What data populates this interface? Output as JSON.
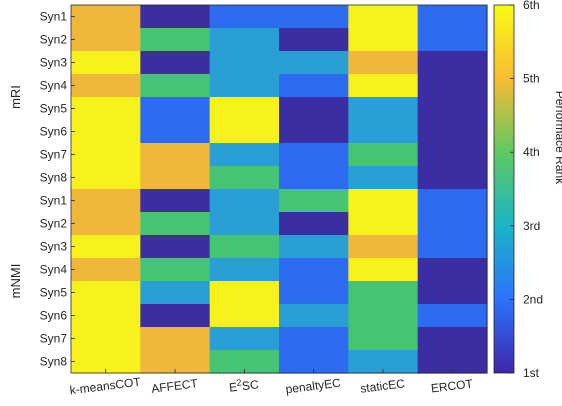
{
  "chart_data": {
    "type": "heatmap",
    "columns": [
      "k-meansCOT",
      "AFFECT",
      "E2SC",
      "penaltyEC",
      "staticEC",
      "ERCOT"
    ],
    "rows": [
      "Syn1",
      "Syn2",
      "Syn3",
      "Syn4",
      "Syn5",
      "Syn6",
      "Syn7",
      "Syn8",
      "Syn1",
      "Syn2",
      "Syn3",
      "Syn4",
      "Syn5",
      "Syn6",
      "Syn7",
      "Syn8"
    ],
    "row_groups": [
      {
        "label": "mRI",
        "start": 0,
        "count": 8
      },
      {
        "label": "mNMI",
        "start": 8,
        "count": 8
      }
    ],
    "values": [
      [
        5,
        1,
        2,
        2,
        6,
        2
      ],
      [
        5,
        4,
        3,
        1,
        6,
        2
      ],
      [
        6,
        1,
        3,
        3,
        5,
        1
      ],
      [
        5,
        4,
        3,
        2,
        6,
        1
      ],
      [
        6,
        2,
        6,
        1,
        3,
        1
      ],
      [
        6,
        2,
        6,
        1,
        3,
        1
      ],
      [
        6,
        5,
        3,
        2,
        4,
        1
      ],
      [
        6,
        5,
        4,
        2,
        3,
        1
      ],
      [
        5,
        1,
        3,
        4,
        6,
        2
      ],
      [
        5,
        4,
        3,
        1,
        6,
        2
      ],
      [
        6,
        1,
        4,
        3,
        5,
        2
      ],
      [
        5,
        4,
        3,
        2,
        6,
        1
      ],
      [
        6,
        3,
        6,
        2,
        4,
        1
      ],
      [
        6,
        1,
        6,
        3,
        4,
        2
      ],
      [
        6,
        5,
        3,
        2,
        4,
        1
      ],
      [
        6,
        5,
        4,
        2,
        3,
        1
      ]
    ],
    "colorbar": {
      "ticks": [
        "1st",
        "2nd",
        "3rd",
        "4th",
        "5th",
        "6th"
      ],
      "label": "Performace Rank",
      "range": [
        1,
        6
      ],
      "colors": [
        "#3e26a8",
        "#2c72fc",
        "#1bb5c7",
        "#5fc961",
        "#f9bb35",
        "#f9fb15"
      ]
    },
    "rank_colors": {
      "1": "#3b2ea3",
      "2": "#2d6bf0",
      "3": "#2a9fd6",
      "4": "#45c474",
      "5": "#efb83b",
      "6": "#f8f21c"
    }
  }
}
